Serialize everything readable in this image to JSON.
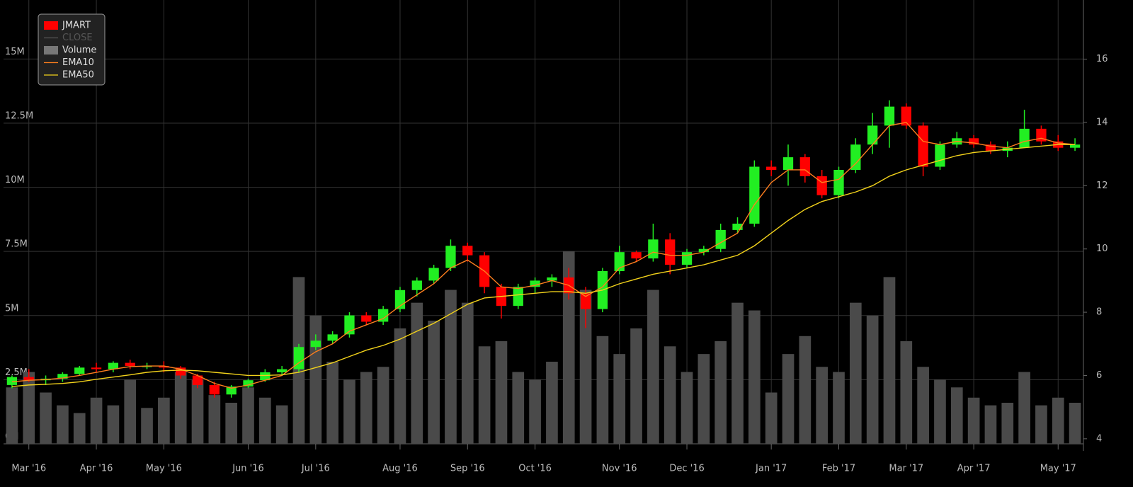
{
  "chart_data": {
    "type": "candlestick",
    "categories": [
      null,
      "Mar '16",
      null,
      null,
      null,
      "Apr '16",
      null,
      null,
      null,
      "May '16",
      null,
      null,
      null,
      null,
      "Jun '16",
      null,
      null,
      null,
      "Jul '16",
      null,
      null,
      null,
      null,
      "Aug '16",
      null,
      null,
      null,
      "Sep '16",
      null,
      null,
      null,
      "Oct '16",
      null,
      null,
      null,
      null,
      "Nov '16",
      null,
      null,
      null,
      "Dec '16",
      null,
      null,
      null,
      null,
      "Jan '17",
      null,
      null,
      null,
      "Feb '17",
      null,
      null,
      null,
      "Mar '17",
      null,
      null,
      null,
      "Apr '17",
      null,
      null,
      null,
      null,
      "May '17",
      null
    ],
    "series": [
      {
        "name": "JMART",
        "type": "candlestick",
        "axis": "y2",
        "color": "#ff0000",
        "up_color": "#22ee22",
        "down_color": "#ff0000",
        "open": [
          5.7,
          5.95,
          5.85,
          5.9,
          6.05,
          6.25,
          6.2,
          6.4,
          6.3,
          6.3,
          6.25,
          6.0,
          5.7,
          5.4,
          5.65,
          5.85,
          6.1,
          6.2,
          6.9,
          7.1,
          7.3,
          7.9,
          7.7,
          8.1,
          8.7,
          9.0,
          9.4,
          10.1,
          9.8,
          8.8,
          8.2,
          8.8,
          9.0,
          9.1,
          8.6,
          8.1,
          9.3,
          9.9,
          9.7,
          10.3,
          9.5,
          9.9,
          10.0,
          10.6,
          10.8,
          12.6,
          12.5,
          12.9,
          12.3,
          11.7,
          12.5,
          13.3,
          13.9,
          14.5,
          13.9,
          12.6,
          13.3,
          13.5,
          13.3,
          13.1,
          13.2,
          13.8,
          13.4,
          13.2
        ],
        "high": [
          6.0,
          6.2,
          6.0,
          6.1,
          6.3,
          6.4,
          6.45,
          6.5,
          6.4,
          6.45,
          6.3,
          6.05,
          5.8,
          5.7,
          5.9,
          6.2,
          6.3,
          7.0,
          7.3,
          7.4,
          8.0,
          8.0,
          8.2,
          8.8,
          9.1,
          9.5,
          10.3,
          10.2,
          9.9,
          8.9,
          8.9,
          9.1,
          9.2,
          9.4,
          8.8,
          9.4,
          10.1,
          9.95,
          10.8,
          10.5,
          10.0,
          10.1,
          10.8,
          11.0,
          12.8,
          12.8,
          13.3,
          13.0,
          12.5,
          12.6,
          13.5,
          14.3,
          14.7,
          14.6,
          14.0,
          13.4,
          13.7,
          13.6,
          13.4,
          13.4,
          14.4,
          13.9,
          13.6,
          13.5
        ],
        "low": [
          5.6,
          5.8,
          5.7,
          5.8,
          6.0,
          6.1,
          6.1,
          6.2,
          6.2,
          6.1,
          5.9,
          5.6,
          5.3,
          5.3,
          5.6,
          5.8,
          6.0,
          6.1,
          6.8,
          7.0,
          7.2,
          7.6,
          7.6,
          8.0,
          8.5,
          8.9,
          9.3,
          9.6,
          8.6,
          7.8,
          8.1,
          8.6,
          8.8,
          8.4,
          7.5,
          8.0,
          9.2,
          9.6,
          9.6,
          9.2,
          9.4,
          9.8,
          9.9,
          10.5,
          10.7,
          12.3,
          12.0,
          12.1,
          11.6,
          11.6,
          12.4,
          13.0,
          13.2,
          13.8,
          12.3,
          12.5,
          13.2,
          13.2,
          13.0,
          12.9,
          13.2,
          13.3,
          13.1,
          13.1
        ],
        "close": [
          5.95,
          5.85,
          5.9,
          6.05,
          6.25,
          6.2,
          6.4,
          6.3,
          6.3,
          6.25,
          6.0,
          5.7,
          5.4,
          5.65,
          5.85,
          6.1,
          6.2,
          6.9,
          7.1,
          7.3,
          7.9,
          7.7,
          8.1,
          8.7,
          9.0,
          9.4,
          10.1,
          9.8,
          8.8,
          8.2,
          8.8,
          9.0,
          9.1,
          8.6,
          8.1,
          9.3,
          9.9,
          9.7,
          10.3,
          9.5,
          9.9,
          10.0,
          10.6,
          10.8,
          12.6,
          12.5,
          12.9,
          12.3,
          11.7,
          12.5,
          13.3,
          13.9,
          14.5,
          13.9,
          12.6,
          13.3,
          13.5,
          13.3,
          13.1,
          13.2,
          13.8,
          13.4,
          13.2,
          13.3
        ]
      },
      {
        "name": "CLOSE",
        "type": "line",
        "color": "#555555",
        "hidden": true
      },
      {
        "name": "Volume",
        "type": "bar",
        "color": "#4a4a4a",
        "values": [
          2.2,
          2.8,
          2.0,
          1.5,
          1.2,
          1.8,
          1.5,
          2.5,
          1.4,
          1.8,
          2.8,
          2.5,
          1.9,
          1.6,
          2.2,
          1.8,
          1.5,
          6.5,
          5.0,
          3.2,
          2.5,
          2.8,
          3.0,
          4.5,
          5.5,
          4.8,
          6.0,
          5.5,
          3.8,
          4.0,
          2.8,
          2.5,
          3.2,
          7.5,
          6.0,
          4.2,
          3.5,
          4.5,
          6.0,
          3.8,
          2.8,
          3.5,
          4.0,
          5.5,
          5.2,
          2.0,
          3.5,
          4.2,
          3.0,
          2.8,
          5.5,
          5.0,
          6.5,
          4.0,
          3.0,
          2.5,
          2.2,
          1.8,
          1.5,
          1.6,
          2.8,
          1.5,
          1.8,
          1.6
        ]
      },
      {
        "name": "EMA10",
        "type": "line",
        "axis": "y2",
        "color": "#ff7f1e",
        "values": [
          5.8,
          5.85,
          5.87,
          5.92,
          6.0,
          6.1,
          6.2,
          6.28,
          6.3,
          6.3,
          6.2,
          6.0,
          5.75,
          5.6,
          5.7,
          5.85,
          6.0,
          6.4,
          6.75,
          7.0,
          7.4,
          7.6,
          7.8,
          8.2,
          8.55,
          8.9,
          9.4,
          9.65,
          9.3,
          8.8,
          8.75,
          8.85,
          9.0,
          8.85,
          8.5,
          8.8,
          9.4,
          9.6,
          9.9,
          9.8,
          9.8,
          9.9,
          10.2,
          10.5,
          11.4,
          12.1,
          12.5,
          12.5,
          12.1,
          12.2,
          12.7,
          13.3,
          13.9,
          14.0,
          13.4,
          13.3,
          13.4,
          13.35,
          13.25,
          13.2,
          13.4,
          13.5,
          13.35,
          13.3
        ]
      },
      {
        "name": "EMA50",
        "type": "line",
        "axis": "y2",
        "color": "#f2d21b",
        "values": [
          5.65,
          5.7,
          5.72,
          5.75,
          5.8,
          5.88,
          5.95,
          6.02,
          6.1,
          6.15,
          6.17,
          6.15,
          6.1,
          6.05,
          6.0,
          6.0,
          6.02,
          6.1,
          6.25,
          6.4,
          6.6,
          6.8,
          6.95,
          7.15,
          7.4,
          7.65,
          7.95,
          8.25,
          8.45,
          8.5,
          8.55,
          8.6,
          8.65,
          8.65,
          8.6,
          8.7,
          8.9,
          9.05,
          9.2,
          9.3,
          9.4,
          9.5,
          9.65,
          9.8,
          10.1,
          10.5,
          10.9,
          11.25,
          11.5,
          11.65,
          11.8,
          12.0,
          12.3,
          12.5,
          12.65,
          12.8,
          12.95,
          13.05,
          13.1,
          13.15,
          13.2,
          13.25,
          13.3,
          13.3
        ]
      }
    ],
    "ylim": [
      0,
      17.3
    ],
    "yticks": [
      {
        "value": 0,
        "label": "0M"
      },
      {
        "value": 2.5,
        "label": "2.5M"
      },
      {
        "value": 5,
        "label": "5M"
      },
      {
        "value": 7.5,
        "label": "7.5M"
      },
      {
        "value": 10,
        "label": "10M"
      },
      {
        "value": 12.5,
        "label": "12.5M"
      },
      {
        "value": 15,
        "label": "15M"
      }
    ],
    "y2lim": [
      3.84,
      17.87
    ],
    "y2ticks": [
      4,
      6,
      8,
      10,
      12,
      14,
      16
    ],
    "grid": true,
    "legend": "top-left"
  }
}
